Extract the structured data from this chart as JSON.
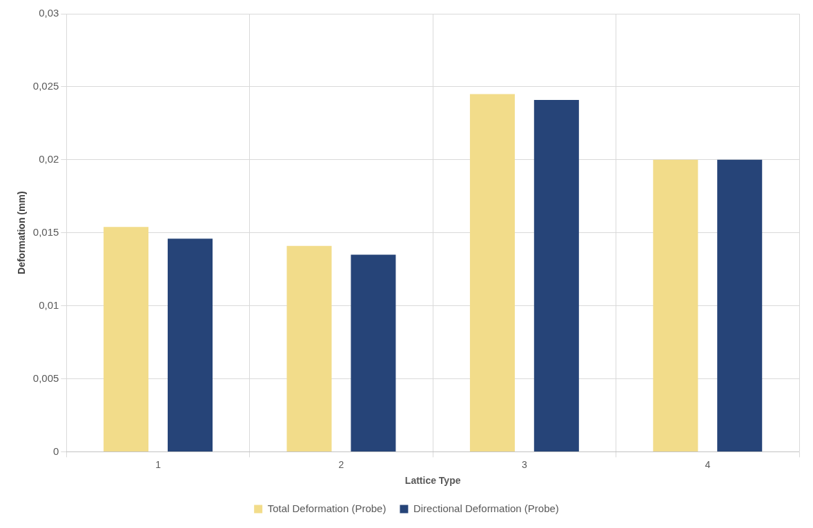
{
  "chart_data": {
    "type": "bar",
    "xlabel": "Lattice Type",
    "ylabel": "Deformation (mm)",
    "categories": [
      "1",
      "2",
      "3",
      "4"
    ],
    "series": [
      {
        "name": "Total Deformation (Probe)",
        "color": "#f2dc8a",
        "values": [
          0.0154,
          0.0141,
          0.0245,
          0.02
        ]
      },
      {
        "name": "Directional Deformation (Probe)",
        "color": "#264478",
        "values": [
          0.0146,
          0.0135,
          0.0241,
          0.02
        ]
      }
    ],
    "ylim": [
      0,
      0.03
    ],
    "yticks": [
      {
        "value": 0,
        "label": "0"
      },
      {
        "value": 0.005,
        "label": "0,005"
      },
      {
        "value": 0.01,
        "label": "0,01"
      },
      {
        "value": 0.015,
        "label": "0,015"
      },
      {
        "value": 0.02,
        "label": "0,02"
      },
      {
        "value": 0.025,
        "label": "0,025"
      },
      {
        "value": 0.03,
        "label": "0,03"
      }
    ],
    "grid": true,
    "legend": "bottom"
  }
}
